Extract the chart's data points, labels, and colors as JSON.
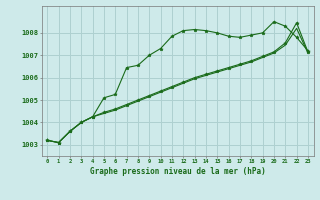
{
  "title": "Graphe pression niveau de la mer (hPa)",
  "bg_color": "#ceeaea",
  "grid_color": "#aed0d0",
  "line_color": "#1a6b1a",
  "x_ticks": [
    0,
    1,
    2,
    3,
    4,
    5,
    6,
    7,
    8,
    9,
    10,
    11,
    12,
    13,
    14,
    15,
    16,
    17,
    18,
    19,
    20,
    21,
    22,
    23
  ],
  "ylim": [
    1002.5,
    1009.2
  ],
  "yticks": [
    1003,
    1004,
    1005,
    1006,
    1007,
    1008
  ],
  "series1": [
    1003.2,
    1003.1,
    1003.6,
    1004.0,
    1004.25,
    1005.1,
    1005.25,
    1006.45,
    1006.55,
    1007.0,
    1007.3,
    1007.85,
    1008.1,
    1008.15,
    1008.1,
    1008.0,
    1007.85,
    1007.8,
    1007.9,
    1008.0,
    1008.5,
    1008.3,
    1007.8,
    1007.2
  ],
  "series2": [
    1003.2,
    1003.1,
    1003.6,
    1004.0,
    1004.25,
    1004.45,
    1004.6,
    1004.8,
    1005.0,
    1005.2,
    1005.4,
    1005.6,
    1005.8,
    1006.0,
    1006.15,
    1006.3,
    1006.45,
    1006.6,
    1006.75,
    1006.95,
    1007.15,
    1007.55,
    1008.45,
    1007.15
  ],
  "series3": [
    1003.2,
    1003.1,
    1003.6,
    1004.0,
    1004.25,
    1004.4,
    1004.55,
    1004.75,
    1004.95,
    1005.15,
    1005.35,
    1005.55,
    1005.75,
    1005.95,
    1006.1,
    1006.25,
    1006.4,
    1006.55,
    1006.7,
    1006.9,
    1007.1,
    1007.45,
    1008.2,
    1007.1
  ]
}
